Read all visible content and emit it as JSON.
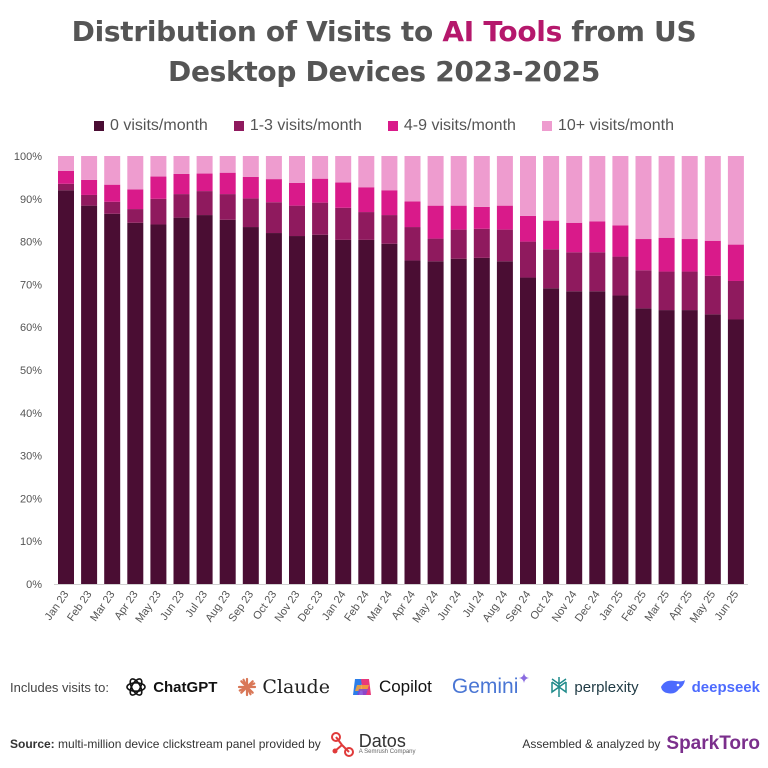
{
  "title": {
    "line1_pre": "Distribution of Visits to ",
    "line1_accent": "AI Tools",
    "line1_post": " from US",
    "line2": "Desktop Devices 2023-2025"
  },
  "colors": {
    "0 visits/month": "#4a0d33",
    "1-3 visits/month": "#8f1a5e",
    "4-9 visits/month": "#d91a8a",
    "10+ visits/month": "#ee9ccf",
    "title_accent": "#b5186c"
  },
  "chart_data": {
    "type": "bar",
    "stacked": true,
    "percent_axis": true,
    "ylim": [
      0,
      100
    ],
    "yticks": [
      "0%",
      "10%",
      "20%",
      "30%",
      "40%",
      "50%",
      "60%",
      "70%",
      "80%",
      "90%",
      "100%"
    ],
    "legend_position": "top",
    "grid": false,
    "categories": [
      "Jan 23",
      "Feb 23",
      "Mar 23",
      "Apr 23",
      "May 23",
      "Jun 23",
      "Jul 23",
      "Aug 23",
      "Sep 23",
      "Oct 23",
      "Nov 23",
      "Dec 23",
      "Jan 24",
      "Feb 24",
      "Mar 24",
      "Apr 24",
      "May 24",
      "Jun 24",
      "Jul 24",
      "Aug 24",
      "Sep 24",
      "Oct 24",
      "Nov 24",
      "Dec 24",
      "Jan 25",
      "Feb 25",
      "Mar 25",
      "Apr 25",
      "May 25",
      "Jun 25"
    ],
    "series": [
      {
        "name": "0 visits/month",
        "values": [
          92.0,
          88.4,
          86.5,
          84.4,
          84.0,
          85.6,
          86.2,
          85.1,
          83.4,
          82.0,
          81.3,
          81.6,
          80.4,
          80.4,
          79.5,
          75.6,
          75.4,
          76.0,
          76.2,
          75.4,
          71.6,
          69.1,
          68.4,
          68.4,
          67.4,
          64.4,
          64.0,
          64.0,
          63.0,
          61.8
        ]
      },
      {
        "name": "1-3 visits/month",
        "values": [
          1.5,
          2.5,
          2.8,
          3.2,
          6.0,
          5.5,
          5.6,
          6.0,
          6.7,
          7.2,
          7.1,
          7.5,
          7.5,
          6.5,
          6.7,
          7.8,
          5.3,
          6.8,
          6.8,
          7.4,
          8.4,
          9.1,
          9.1,
          9.1,
          9.1,
          8.9,
          9.0,
          9.0,
          9.0,
          9.0
        ]
      },
      {
        "name": "4-9 visits/month",
        "values": [
          3.0,
          3.5,
          4.0,
          4.6,
          5.2,
          4.7,
          4.1,
          5.0,
          5.0,
          5.4,
          5.3,
          5.6,
          5.9,
          5.8,
          5.8,
          6.0,
          7.7,
          5.6,
          5.1,
          5.6,
          6.0,
          6.7,
          6.9,
          7.2,
          7.3,
          7.3,
          7.9,
          7.6,
          8.2,
          8.5
        ]
      },
      {
        "name": "10+ visits/month",
        "values": [
          3.5,
          5.6,
          6.7,
          7.8,
          4.8,
          4.2,
          4.1,
          3.9,
          4.9,
          5.4,
          6.3,
          5.3,
          6.2,
          7.3,
          8.0,
          10.6,
          11.6,
          11.6,
          11.9,
          11.6,
          14.0,
          15.1,
          15.6,
          15.3,
          16.2,
          19.4,
          19.1,
          19.4,
          19.8,
          20.7
        ]
      }
    ]
  },
  "includes": {
    "label": "Includes visits to:",
    "tools": [
      {
        "name": "ChatGPT",
        "icon": "chatgpt-icon"
      },
      {
        "name": "Claude",
        "icon": "claude-icon"
      },
      {
        "name": "Copilot",
        "icon": "copilot-icon"
      },
      {
        "name": "Gemini",
        "icon": "gemini-icon"
      },
      {
        "name": "perplexity",
        "icon": "perplexity-icon"
      },
      {
        "name": "deepseek",
        "icon": "deepseek-icon"
      }
    ]
  },
  "source": {
    "label": "Source:",
    "text": " multi-million device clickstream panel provided by",
    "provider": "Datos",
    "provider_sub": "A Semrush Company"
  },
  "credit": {
    "text": "Assembled & analyzed by",
    "brand": "SparkToro"
  }
}
